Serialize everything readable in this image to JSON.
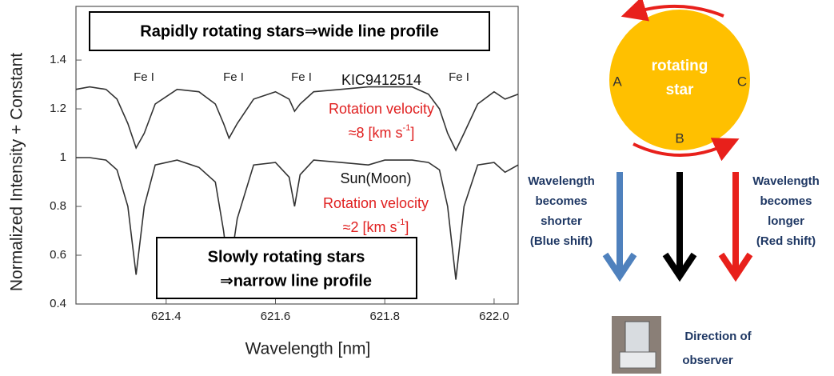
{
  "chart_data": {
    "type": "line",
    "y_label": "Normalized Intensity + Constant",
    "x_label": "Wavelength [nm]",
    "xlim": [
      621.235,
      622.044
    ],
    "ylim": [
      0.4,
      1.62
    ],
    "xticks": [
      621.4,
      621.6,
      621.8,
      {
        "value": 622,
        "label": "622.0"
      }
    ],
    "yticks": [
      0.4,
      0.6,
      0.8,
      1,
      1.2,
      1.4
    ],
    "x": [
      621.235,
      621.26,
      621.29,
      621.31,
      621.33,
      621.345,
      621.36,
      621.38,
      621.42,
      621.46,
      621.49,
      621.505,
      621.515,
      621.53,
      621.56,
      621.6,
      621.625,
      621.635,
      621.645,
      621.67,
      621.72,
      621.77,
      621.8,
      621.85,
      621.88,
      621.9,
      621.915,
      621.93,
      621.945,
      621.97,
      622.0,
      622.02,
      622.044
    ],
    "series": [
      {
        "name": "KIC9412514",
        "color": "#333333",
        "values": [
          1.28,
          1.29,
          1.28,
          1.24,
          1.14,
          1.04,
          1.1,
          1.22,
          1.28,
          1.27,
          1.22,
          1.14,
          1.08,
          1.14,
          1.24,
          1.27,
          1.24,
          1.19,
          1.22,
          1.27,
          1.28,
          1.29,
          1.29,
          1.29,
          1.26,
          1.2,
          1.1,
          1.03,
          1.1,
          1.22,
          1.27,
          1.24,
          1.26
        ]
      },
      {
        "name": "Sun(Moon)",
        "color": "#333333",
        "values": [
          1.0,
          1.0,
          0.99,
          0.95,
          0.8,
          0.52,
          0.8,
          0.97,
          0.99,
          0.96,
          0.9,
          0.7,
          0.52,
          0.75,
          0.97,
          0.98,
          0.92,
          0.8,
          0.93,
          0.99,
          0.98,
          0.97,
          0.99,
          0.99,
          0.98,
          0.95,
          0.8,
          0.5,
          0.8,
          0.97,
          0.98,
          0.94,
          0.97
        ]
      }
    ],
    "line_labels": [
      "Fe I",
      "Fe I",
      "Fe I",
      "Fe I"
    ],
    "fast_box": "Rapidly rotating stars⇒wide line profile",
    "slow_box": [
      "Slowly rotating stars",
      "⇒narrow line profile"
    ],
    "fast_velocity": [
      "Rotation velocity",
      "≈8 [km s",
      "-1",
      "]"
    ],
    "slow_velocity": [
      "Rotation velocity",
      "≈2 [km s",
      "-1",
      "]"
    ]
  },
  "diagram": {
    "star_label": [
      "rotating",
      "star"
    ],
    "points": [
      "A",
      "B",
      "C"
    ],
    "blue_text": [
      "Wavelength",
      "becomes",
      "shorter",
      "(Blue shift)"
    ],
    "red_text": [
      "Wavelength",
      "becomes",
      "longer",
      "(Red shift)"
    ],
    "observer": [
      "Direction of",
      "observer"
    ]
  }
}
